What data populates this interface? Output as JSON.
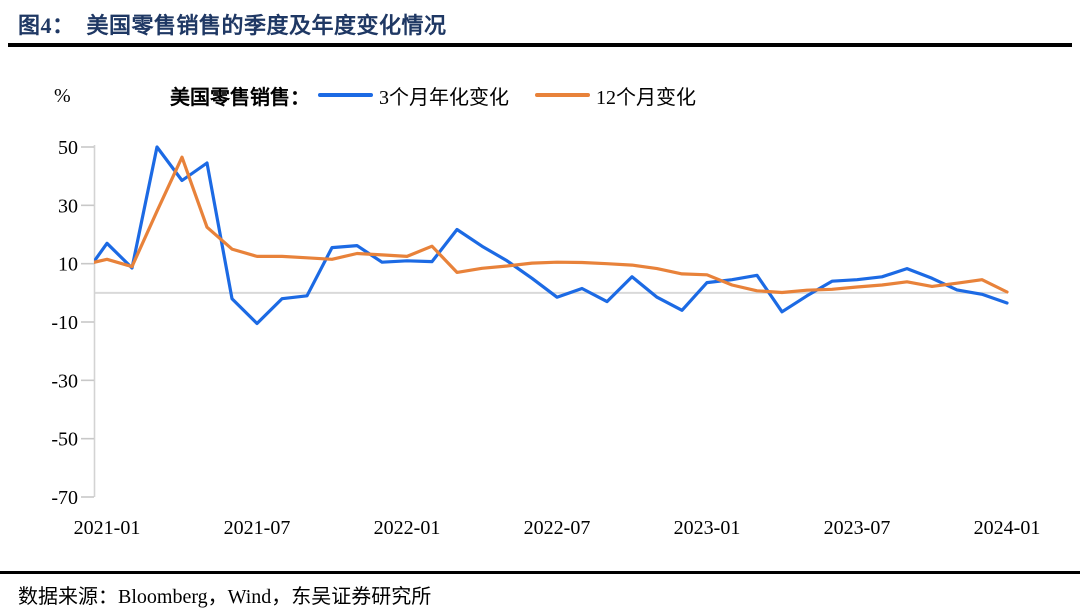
{
  "page": {
    "title_label": "图4：",
    "title": "美国零售销售的季度及年度变化情况",
    "source_label": "数据来源：",
    "source": "Bloomberg，Wind，东吴证券研究所"
  },
  "chart_data": {
    "type": "line",
    "title": "美国零售销售的季度及年度变化情况",
    "unit_label": "%",
    "legend_title": "美国零售销售：",
    "legend_position": "top",
    "grid": "zero-line-only",
    "ylim": [
      -70,
      50
    ],
    "yticks": [
      50,
      30,
      10,
      -10,
      -30,
      -50,
      -70
    ],
    "xtick_labels": [
      "2021-01",
      "2021-07",
      "2022-01",
      "2022-07",
      "2023-01",
      "2023-07",
      "2024-01"
    ],
    "x": [
      "2020-12",
      "2021-01",
      "2021-02",
      "2021-03",
      "2021-04",
      "2021-05",
      "2021-06",
      "2021-07",
      "2021-08",
      "2021-09",
      "2021-10",
      "2021-11",
      "2021-12",
      "2022-01",
      "2022-02",
      "2022-03",
      "2022-04",
      "2022-05",
      "2022-06",
      "2022-07",
      "2022-08",
      "2022-09",
      "2022-10",
      "2022-11",
      "2022-12",
      "2023-01",
      "2023-02",
      "2023-03",
      "2023-04",
      "2023-05",
      "2023-06",
      "2023-07",
      "2023-08",
      "2023-09",
      "2023-10",
      "2023-11",
      "2023-12",
      "2024-01"
    ],
    "series": [
      {
        "name": "3个月年化变化",
        "color": "#1c6ae4",
        "values": [
          5,
          17,
          8.5,
          50,
          38.5,
          44.5,
          -2,
          -10.5,
          -2,
          -1,
          15.5,
          16.2,
          10.5,
          11,
          10.7,
          21.7,
          16,
          11,
          5,
          -1.5,
          1.5,
          -3,
          5.5,
          -1.5,
          -6,
          3.5,
          4.5,
          6,
          -6.5,
          -1,
          4,
          4.5,
          5.5,
          8.3,
          5,
          1,
          -0.5,
          -3.5
        ]
      },
      {
        "name": "12个月变化",
        "color": "#e8823a",
        "values": [
          9.5,
          11.5,
          9,
          28,
          46.5,
          22.5,
          15,
          12.5,
          12.5,
          12,
          11.5,
          13.5,
          13,
          12.5,
          16,
          7,
          8.4,
          9.2,
          10.2,
          10.5,
          10.4,
          10,
          9.5,
          8.3,
          6.5,
          6.2,
          2.7,
          0.7,
          0.1,
          0.9,
          1.2,
          2,
          2.7,
          3.8,
          2.2,
          3.3,
          4.5,
          0.3
        ]
      }
    ]
  }
}
